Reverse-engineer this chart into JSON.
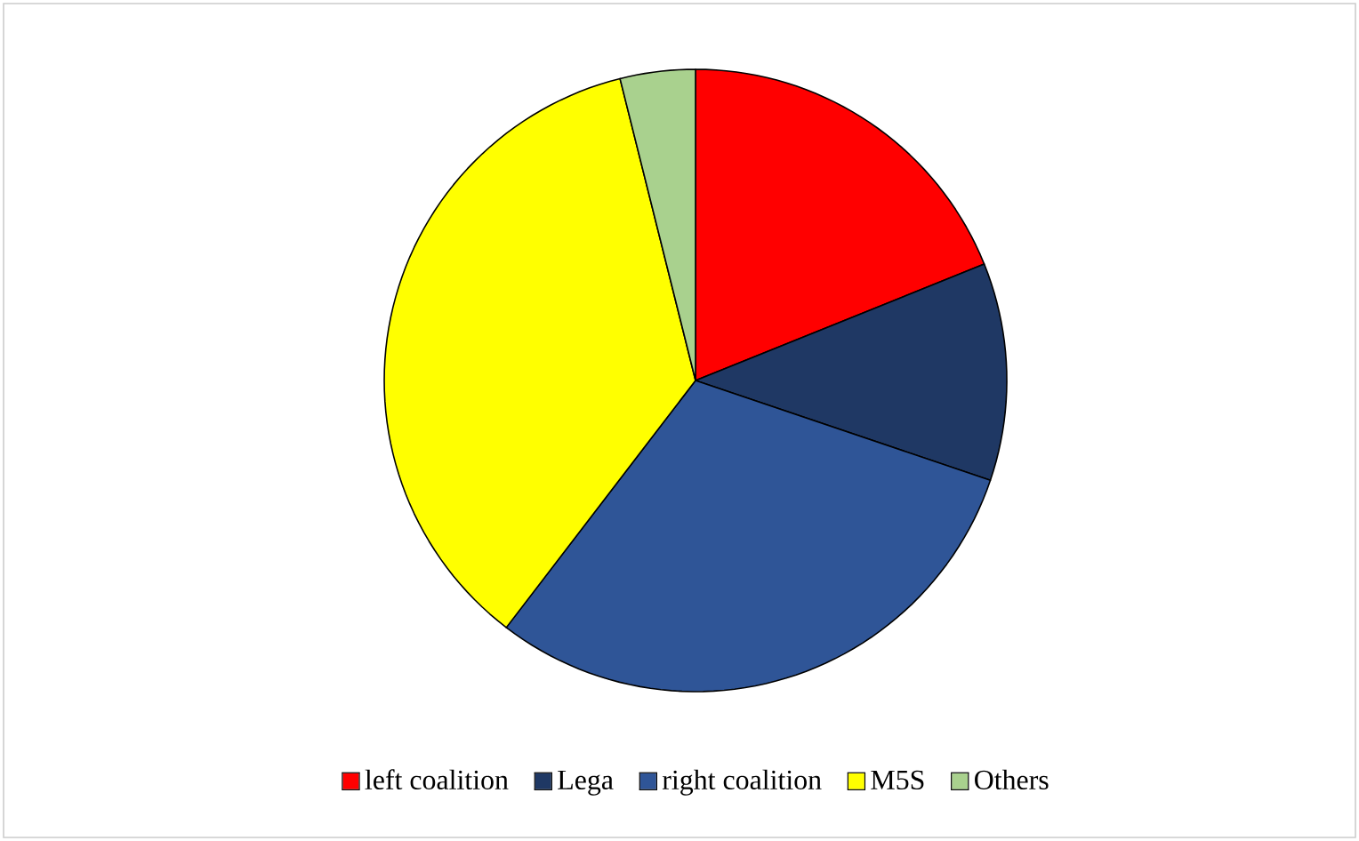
{
  "chart_data": {
    "type": "pie",
    "categories": [
      "left coalition",
      "Lega",
      "right coalition",
      "M5S",
      "Others"
    ],
    "values": [
      18.9,
      11.3,
      30.2,
      35.7,
      3.9
    ],
    "colors": [
      "#ff0000",
      "#1f3864",
      "#2f5597",
      "#ffff00",
      "#a9d18e"
    ],
    "legend": "bottom"
  }
}
